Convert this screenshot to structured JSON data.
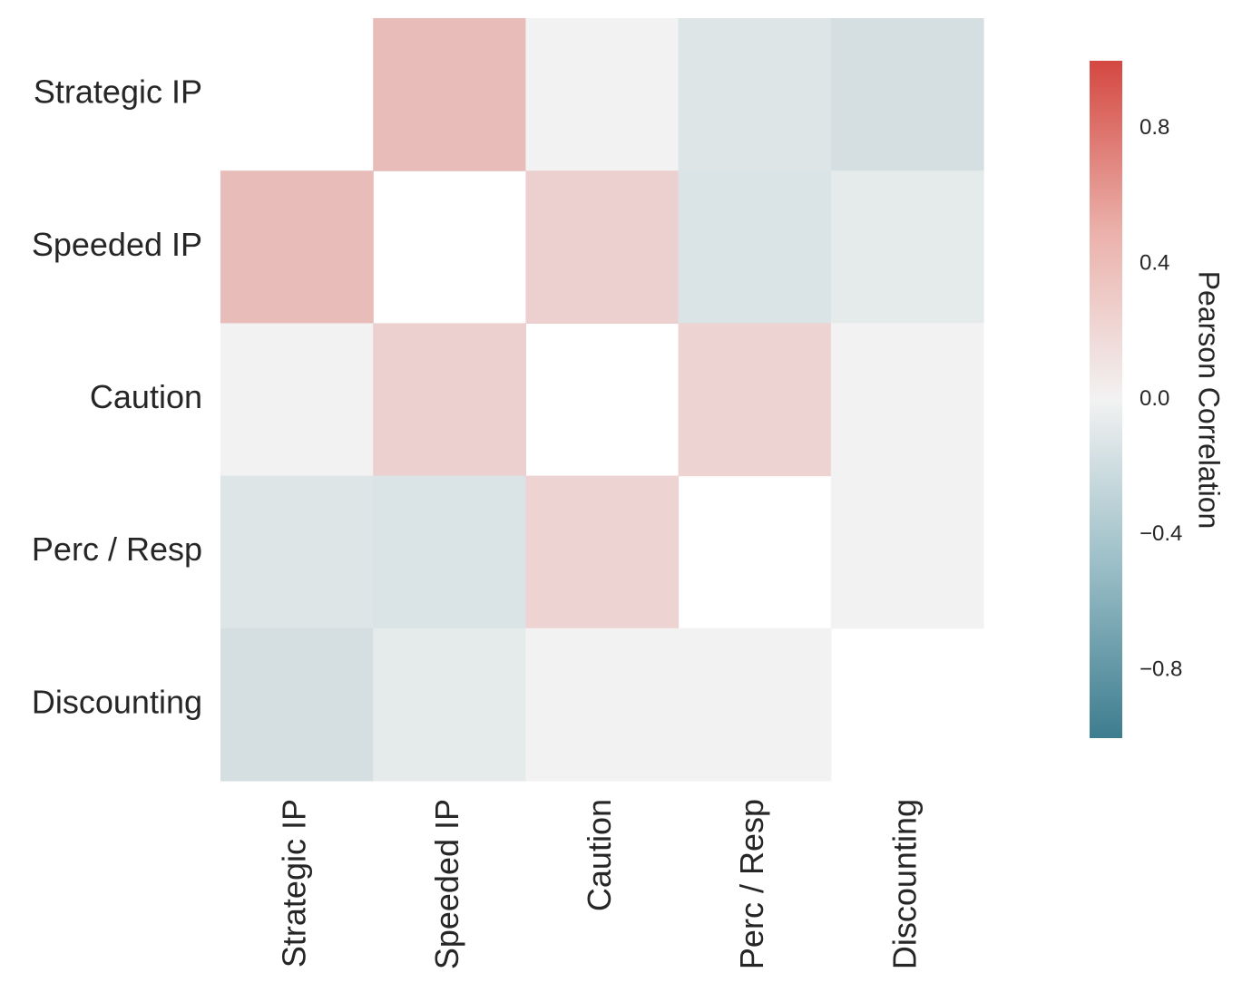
{
  "chart_data": {
    "type": "heatmap",
    "title": "",
    "rows": [
      "Strategic IP",
      "Speeded IP",
      "Caution",
      "Perc / Resp",
      "Discounting"
    ],
    "columns": [
      "Strategic IP",
      "Speeded IP",
      "Caution",
      "Perc / Resp",
      "Discounting"
    ],
    "values": [
      [
        null,
        0.32,
        0.0,
        -0.11,
        -0.16
      ],
      [
        0.32,
        null,
        0.2,
        -0.13,
        -0.07
      ],
      [
        0.0,
        0.2,
        null,
        0.18,
        0.0
      ],
      [
        -0.11,
        -0.13,
        0.18,
        null,
        0.0
      ],
      [
        -0.16,
        -0.07,
        0.0,
        0.0,
        null
      ]
    ],
    "masked": "diagonal",
    "colorbar": {
      "label": "Pearson Correlation",
      "range": [
        -1.0,
        1.0
      ],
      "ticks": [
        0.8,
        0.4,
        0.0,
        -0.4,
        -0.8
      ],
      "tick_labels": [
        "0.8",
        "0.4",
        "0.0",
        "−0.4",
        "−0.8"
      ],
      "colormap": "diverging blue-red",
      "low_color": "#3d7d8f",
      "mid_color": "#f2f2f2",
      "high_color": "#d44841"
    },
    "grid": false
  }
}
